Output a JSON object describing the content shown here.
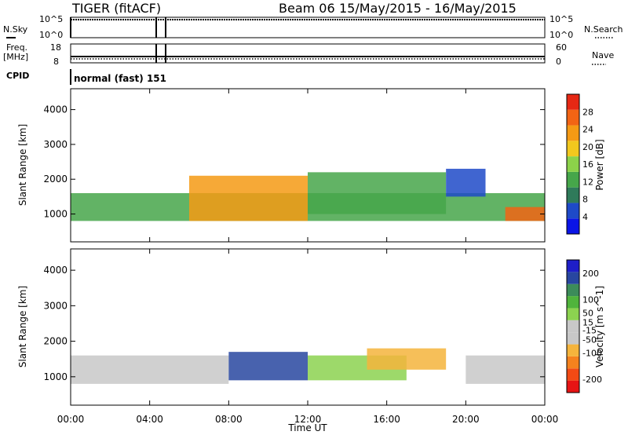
{
  "header": {
    "radar": "TIGER (fitACF)",
    "beam": "Beam 06",
    "dates": "15/May/2015 - 16/May/2015"
  },
  "aux_panels": {
    "sky_label": "N.Sky",
    "sky_ticks": [
      "10^5",
      "10^0"
    ],
    "search_label": "N.Search",
    "search_ticks": [
      "10^5",
      "10^0"
    ],
    "freq_label_1": "Freq.",
    "freq_label_2": "[MHz]",
    "freq_ticks": [
      "18",
      "8"
    ],
    "nave_label": "Nave",
    "nave_ticks": [
      "60",
      "0"
    ],
    "cpid_label": "CPID",
    "cpid_value": "normal (fast) 151"
  },
  "colors": {
    "power": [
      "#0a14e6",
      "#1e4ac8",
      "#2f7a5a",
      "#46a64a",
      "#8cd24a",
      "#f2c81e",
      "#f59a14",
      "#f26414",
      "#e62814"
    ],
    "velocity": [
      "#e61414",
      "#f24a14",
      "#f5821e",
      "#f5b43c",
      "#c8c8c8",
      "#c8c8c8",
      "#8cd250",
      "#50b43c",
      "#3c8c5a",
      "#2846a0",
      "#1e1ec8"
    ]
  },
  "chart_data": [
    {
      "type": "heatmap",
      "panel": "power",
      "ylabel": "Slant Range [km]",
      "x_ticks": [
        "00:00",
        "04:00",
        "08:00",
        "12:00",
        "16:00",
        "20:00",
        "00:00"
      ],
      "y_ticks": [
        1000,
        2000,
        3000,
        4000
      ],
      "ylim": [
        200,
        4600
      ],
      "xlim_hours": [
        0,
        24
      ],
      "colorbar": {
        "label": "Power [dB]",
        "ticks": [
          4,
          8,
          12,
          16,
          20,
          24,
          28
        ],
        "range": [
          0,
          32
        ]
      },
      "regions": [
        {
          "x": [
            0,
            24
          ],
          "y": [
            800,
            1600
          ],
          "value": 12
        },
        {
          "x": [
            6,
            12
          ],
          "y": [
            800,
            2100
          ],
          "value": 24
        },
        {
          "x": [
            12,
            19
          ],
          "y": [
            1000,
            2200
          ],
          "value": 14
        },
        {
          "x": [
            19,
            21
          ],
          "y": [
            1500,
            2300
          ],
          "value": 6
        },
        {
          "x": [
            22,
            24
          ],
          "y": [
            800,
            1200
          ],
          "value": 26
        }
      ]
    },
    {
      "type": "heatmap",
      "panel": "velocity",
      "ylabel": "Slant Range [km]",
      "xlabel": "Time UT",
      "x_ticks": [
        "00:00",
        "04:00",
        "08:00",
        "12:00",
        "16:00",
        "20:00",
        "00:00"
      ],
      "y_ticks": [
        1000,
        2000,
        3000,
        4000
      ],
      "ylim": [
        200,
        4600
      ],
      "xlim_hours": [
        0,
        24
      ],
      "colorbar": {
        "label": "Velocity [m s^-1]",
        "ticks": [
          200,
          100,
          50,
          15,
          -15,
          -50,
          -100,
          -200
        ],
        "range": [
          -250,
          250
        ]
      },
      "regions": [
        {
          "x": [
            0,
            8
          ],
          "y": [
            800,
            1600
          ],
          "value": 0
        },
        {
          "x": [
            8,
            12
          ],
          "y": [
            900,
            1700
          ],
          "value": 180
        },
        {
          "x": [
            12,
            17
          ],
          "y": [
            900,
            1600
          ],
          "value": 40
        },
        {
          "x": [
            15,
            19
          ],
          "y": [
            1200,
            1800
          ],
          "value": -80
        },
        {
          "x": [
            20,
            24
          ],
          "y": [
            800,
            1600
          ],
          "value": 0
        }
      ]
    }
  ]
}
